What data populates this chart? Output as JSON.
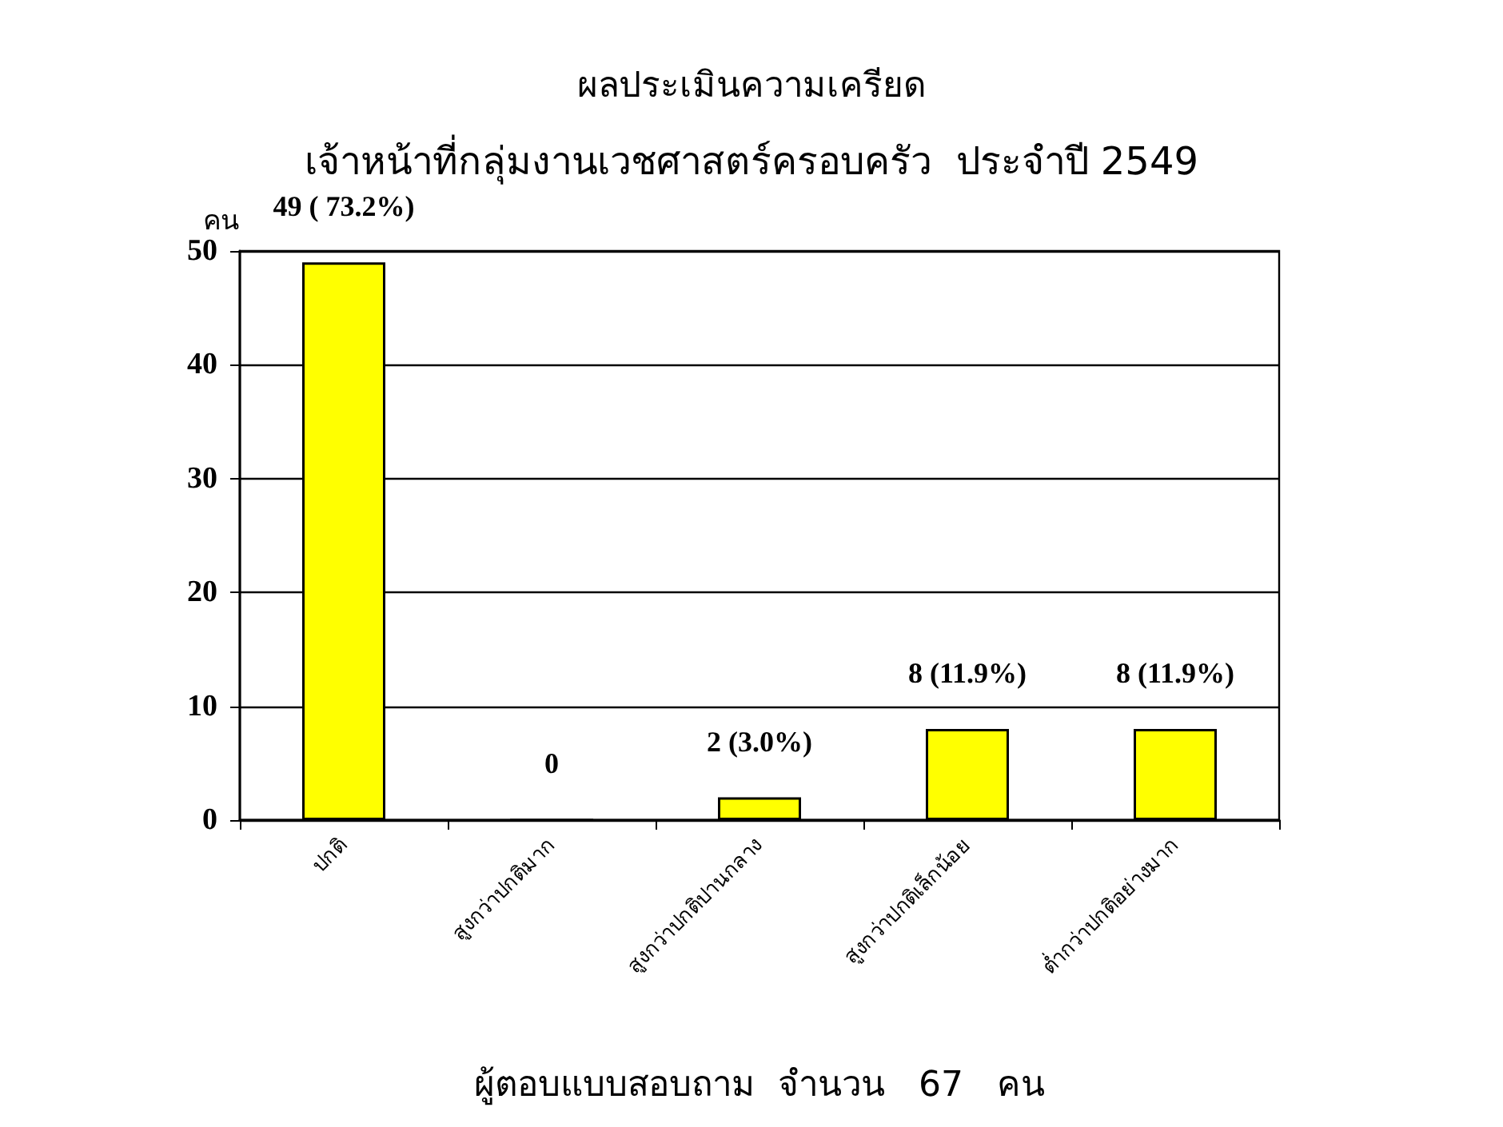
{
  "chart_data": {
    "type": "bar",
    "title": "ผลประเมินความเครียด",
    "subtitle": "เจ้าหน้าที่กลุ่มงานเวชศาสตร์ครอบครัว  ประจำปี 2549",
    "ylabel": "คน",
    "xlabel": "ผู้ตอบแบบสอบถาม  จำนวน   67   คน",
    "categories": [
      "ปกติ",
      "สูงกว่าปกติมาก",
      "สูงกว่าปกติปานกลาง",
      "สูงกว่าปกติเล็กน้อย",
      "ต่ำกว่าปกติอย่างมาก"
    ],
    "values": [
      49,
      0,
      2,
      8,
      8
    ],
    "color": "#ffff00",
    "value_labels": [
      "49 ( 73.2%)",
      "0",
      "2 (3.0%)",
      "8 (11.9%)",
      "8 (11.9%)"
    ],
    "ylim": [
      0,
      50
    ],
    "yticks": [
      0,
      10,
      20,
      30,
      40,
      50
    ],
    "grid": "y"
  }
}
